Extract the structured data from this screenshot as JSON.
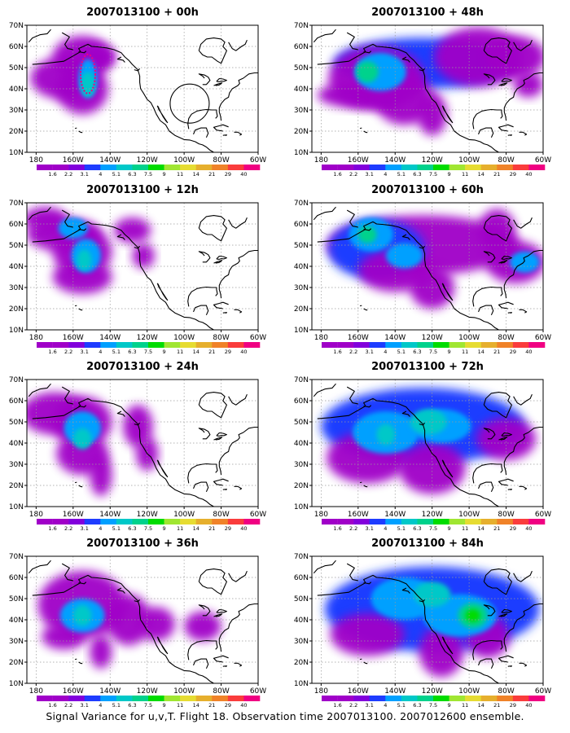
{
  "panels": [
    {
      "title": "2007013100 + 00h",
      "lead": "00h"
    },
    {
      "title": "2007013100 + 48h",
      "lead": "48h"
    },
    {
      "title": "2007013100 + 12h",
      "lead": "12h"
    },
    {
      "title": "2007013100 + 60h",
      "lead": "60h"
    },
    {
      "title": "2007013100 + 24h",
      "lead": "24h"
    },
    {
      "title": "2007013100 + 72h",
      "lead": "72h"
    },
    {
      "title": "2007013100 + 36h",
      "lead": "36h"
    },
    {
      "title": "2007013100 + 84h",
      "lead": "84h"
    }
  ],
  "axes": {
    "lat_labels": [
      "70N",
      "60N",
      "50N",
      "40N",
      "30N",
      "20N",
      "10N"
    ],
    "lon_labels": [
      "180",
      "160W",
      "140W",
      "120W",
      "100W",
      "80W",
      "60W"
    ]
  },
  "colorbar": {
    "labels": [
      "1.6",
      "2.2",
      "3.1",
      "4",
      "5.1",
      "6.3",
      "7.5",
      "9",
      "11",
      "14",
      "21",
      "29",
      "40"
    ],
    "colors": [
      "#a000c8",
      "#8200dc",
      "#1e3cff",
      "#00a0ff",
      "#00c8c8",
      "#00d28c",
      "#00dc00",
      "#a0e632",
      "#e6dc32",
      "#e6af2d",
      "#f08228",
      "#fa3c3c",
      "#f00082"
    ]
  },
  "caption": "Signal Variance for u,v,T. Flight 18. Observation time 2007013100. 2007012600 ensemble."
}
